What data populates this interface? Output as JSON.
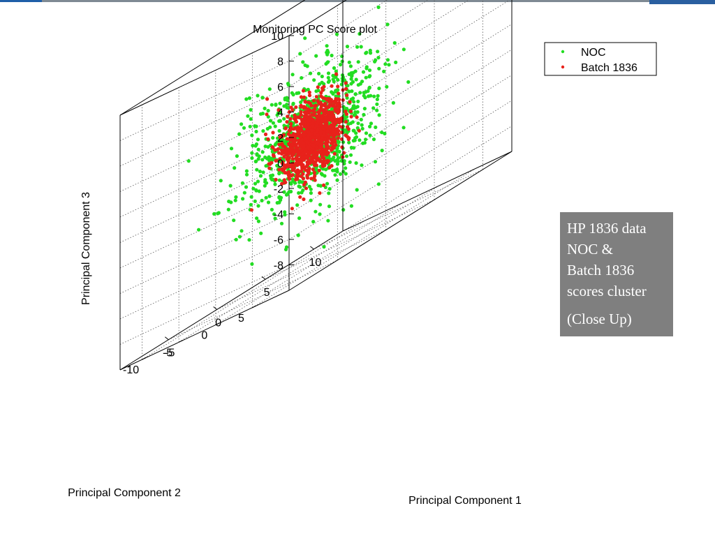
{
  "note": {
    "lines": [
      "HP 1836 data",
      "NOC &",
      "Batch 1836",
      "scores cluster"
    ],
    "close_up": "(Close Up)"
  },
  "chart_data": {
    "type": "scatter",
    "projection": "3d",
    "title": "Monitoring PC Score plot",
    "xlabel": "Principal Component 1",
    "ylabel": "Principal Component 2",
    "zlabel": "Principal Component 3",
    "xlim": [
      -10,
      13
    ],
    "ylim": [
      -13,
      10
    ],
    "zlim": [
      -10,
      10
    ],
    "xticks": [
      -5,
      0,
      5,
      10
    ],
    "yticks": [
      -10,
      -5,
      0,
      5
    ],
    "zticks": [
      -8,
      -6,
      -4,
      -2,
      0,
      2,
      4,
      6,
      8,
      10
    ],
    "grid": true,
    "legend": "top-right",
    "series": [
      {
        "name": "NOC",
        "color": "#22dd22",
        "count": 900,
        "mean": [
          0,
          0,
          0
        ],
        "std": [
          2.8,
          2.8,
          2.6
        ]
      },
      {
        "name": "Batch 1836",
        "color": "#e8221b",
        "count": 1000,
        "mean": [
          0,
          0,
          0
        ],
        "std": [
          1.3,
          1.3,
          1.4
        ],
        "outliers": [
          [
            -7,
            3,
            4.3
          ],
          [
            -5.5,
            5,
            3.6
          ],
          [
            -9,
            6,
            0.2
          ],
          [
            -3,
            0,
            -1.2
          ],
          [
            -4,
            -3,
            -3
          ]
        ]
      }
    ]
  }
}
